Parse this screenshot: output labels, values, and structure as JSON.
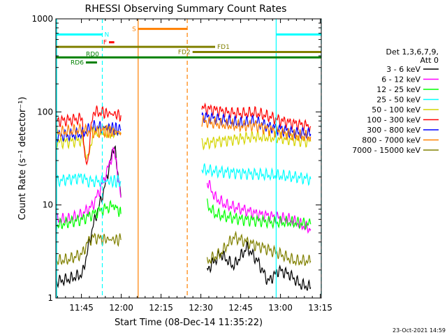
{
  "chart_data": {
    "type": "line",
    "title": "RHESSI Observing Summary Count Rates",
    "xlabel": "Start Time (08-Dec-14 11:35:22)",
    "ylabel": "Count Rate (s⁻¹ detector⁻¹)",
    "y_scale": "log",
    "ylim": [
      1,
      1000
    ],
    "xlim_minutes_from_start": [
      0,
      100
    ],
    "x_ticks": [
      {
        "label": "11:45",
        "t": 9.63
      },
      {
        "label": "12:00",
        "t": 24.63
      },
      {
        "label": "12:15",
        "t": 39.63
      },
      {
        "label": "12:30",
        "t": 54.63
      },
      {
        "label": "12:45",
        "t": 69.63
      },
      {
        "label": "13:00",
        "t": 84.63
      },
      {
        "label": "13:15",
        "t": 99.63
      }
    ],
    "y_ticks": [
      {
        "label": "1",
        "v": 1
      },
      {
        "label": "10",
        "v": 10
      },
      {
        "label": "100",
        "v": 100
      },
      {
        "label": "1000",
        "v": 1000
      }
    ],
    "legend": {
      "position": "right",
      "header": [
        "Det 1,3,6,7,9,",
        "Att 0"
      ],
      "entries": [
        {
          "label": "3 - 6 keV",
          "color": "#000000"
        },
        {
          "label": "6 - 12 keV",
          "color": "#ff00ff"
        },
        {
          "label": "12 - 25 keV",
          "color": "#00ff00"
        },
        {
          "label": "25 - 50 keV",
          "color": "#00ffff"
        },
        {
          "label": "50 - 100 keV",
          "color": "#d4d400"
        },
        {
          "label": "100 - 300 keV",
          "color": "#ff0000"
        },
        {
          "label": "300 - 800 keV",
          "color": "#0000ff"
        },
        {
          "label": "800 - 7000 keV",
          "color": "#ff8000"
        },
        {
          "label": "7000 - 15000 keV",
          "color": "#808000"
        }
      ]
    },
    "series": [
      {
        "name": "3 - 6 keV",
        "color": "#000000",
        "segments": [
          {
            "t": [
              0,
              5,
              10,
              14,
              18,
              22,
              24.5
            ],
            "v": [
              1.5,
              1.6,
              1.8,
              6,
              14,
              45,
              12
            ]
          },
          {
            "t": [
              57,
              62,
              67,
              72,
              76,
              80,
              84,
              88,
              92,
              96
            ],
            "v": [
              2,
              3,
              2.2,
              3.5,
              2.5,
              1.5,
              2,
              1.8,
              1.4,
              1.3
            ]
          }
        ]
      },
      {
        "name": "6 - 12 keV",
        "color": "#ff00ff",
        "segments": [
          {
            "t": [
              0,
              5,
              10,
              14,
              18,
              22,
              24.5
            ],
            "v": [
              7,
              7,
              8,
              10,
              18,
              40,
              12
            ]
          },
          {
            "t": [
              57,
              60,
              64,
              70,
              76,
              82,
              88,
              93,
              96
            ],
            "v": [
              18,
              12,
              10,
              9,
              8,
              7.5,
              7,
              6,
              5.5
            ]
          }
        ]
      },
      {
        "name": "12 - 25 keV",
        "color": "#00ff00",
        "segments": [
          {
            "t": [
              0,
              5,
              10,
              14,
              18,
              22,
              24.5
            ],
            "v": [
              6,
              6.5,
              7,
              8,
              9,
              10,
              8
            ]
          },
          {
            "t": [
              57,
              60,
              64,
              70,
              76,
              82,
              88,
              93,
              96
            ],
            "v": [
              10,
              8,
              7.5,
              7,
              6.8,
              6.5,
              6.5,
              6.3,
              6.2
            ]
          }
        ]
      },
      {
        "name": "25 - 50 keV",
        "color": "#00ffff",
        "segments": [
          {
            "t": [
              0,
              5,
              10,
              12,
              18,
              24.5
            ],
            "v": [
              18,
              19,
              20,
              18,
              18,
              18
            ]
          },
          {
            "t": [
              55,
              60,
              70,
              80,
              90,
              96
            ],
            "v": [
              24,
              23,
              22,
              21,
              20,
              19
            ]
          }
        ]
      },
      {
        "name": "50 - 100 keV",
        "color": "#d4d400",
        "segments": [
          {
            "t": [
              0,
              5,
              10,
              12,
              14,
              18,
              24.5
            ],
            "v": [
              47,
              48,
              50,
              30,
              60,
              62,
              58
            ]
          },
          {
            "t": [
              55,
              60,
              65,
              70,
              75,
              80,
              85,
              90,
              96
            ],
            "v": [
              45,
              48,
              50,
              52,
              54,
              53,
              52,
              50,
              48
            ]
          }
        ]
      },
      {
        "name": "100 - 300 keV",
        "color": "#ff0000",
        "segments": [
          {
            "t": [
              0,
              5,
              10,
              11,
              12,
              14,
              18,
              24.5
            ],
            "v": [
              80,
              82,
              85,
              28,
              30,
              100,
              98,
              92
            ]
          },
          {
            "t": [
              55,
              60,
              65,
              70,
              75,
              80,
              85,
              90,
              96
            ],
            "v": [
              110,
              105,
              98,
              96,
              98,
              90,
              80,
              75,
              70
            ]
          }
        ]
      },
      {
        "name": "300 - 800 keV",
        "color": "#0000ff",
        "segments": [
          {
            "t": [
              0,
              5,
              10,
              14,
              18,
              24.5
            ],
            "v": [
              55,
              56,
              58,
              70,
              68,
              65
            ]
          },
          {
            "t": [
              55,
              60,
              65,
              70,
              75,
              80,
              85,
              90,
              96
            ],
            "v": [
              90,
              85,
              80,
              75,
              80,
              70,
              65,
              60,
              58
            ]
          }
        ]
      },
      {
        "name": "800 - 7000 keV",
        "color": "#ff8000",
        "segments": [
          {
            "t": [
              0,
              5,
              10,
              14,
              18,
              24.5
            ],
            "v": [
              60,
              62,
              64,
              60,
              62,
              60
            ]
          },
          {
            "t": [
              55,
              60,
              65,
              70,
              75,
              80,
              85,
              90,
              96
            ],
            "v": [
              80,
              75,
              72,
              70,
              72,
              65,
              60,
              56,
              54
            ]
          }
        ]
      },
      {
        "name": "7000 - 15000 keV",
        "color": "#808000",
        "segments": [
          {
            "t": [
              0,
              5,
              10,
              12,
              14,
              18,
              24.5
            ],
            "v": [
              2.5,
              2.6,
              3,
              4,
              4.5,
              4.3,
              4.2
            ]
          },
          {
            "t": [
              57,
              62,
              67,
              72,
              78,
              84,
              90,
              96
            ],
            "v": [
              2.5,
              3,
              4.5,
              4,
              3.5,
              3,
              2.5,
              2.5
            ]
          }
        ]
      }
    ],
    "vertical_lines": [
      {
        "t": 0.3,
        "color": "#00ffff",
        "dash": false
      },
      {
        "t": 17.5,
        "color": "#00ffff",
        "dash": true
      },
      {
        "t": 31,
        "color": "#ff8000",
        "dash": false
      },
      {
        "t": 49.5,
        "color": "#ff8000",
        "dash": true
      },
      {
        "t": 83,
        "color": "#00ffff",
        "dash": false
      },
      {
        "t": 100,
        "color": "#00ffff",
        "dash": true
      }
    ],
    "flag_bars": [
      {
        "label": "N",
        "color": "#00ffff",
        "t0": 0,
        "t1": 17.5,
        "v": 680,
        "label_side": "right"
      },
      {
        "label": "",
        "color": "#00ffff",
        "t0": 83,
        "t1": 100,
        "v": 680,
        "label_side": "right"
      },
      {
        "label": "S",
        "color": "#ff8000",
        "t0": 31,
        "t1": 49.5,
        "v": 780,
        "label_side": "left"
      },
      {
        "label": "F",
        "color": "#ff0000",
        "t0": 20,
        "t1": 22,
        "v": 560,
        "label_side": "left"
      },
      {
        "label": "FD1",
        "color": "#808000",
        "t0": 0,
        "t1": 60,
        "v": 500,
        "label_side": "right"
      },
      {
        "label": "FD2",
        "color": "#808000",
        "t0": 51.5,
        "t1": 100,
        "v": 440,
        "label_side": "left"
      },
      {
        "label": "RD0",
        "color": "#008000",
        "t0": 0,
        "t1": 100,
        "v": 385,
        "label_side": "leftabove"
      },
      {
        "label": "RD6",
        "color": "#008000",
        "t0": 11.3,
        "t1": 15.5,
        "v": 340,
        "label_side": "left"
      }
    ]
  },
  "footer_date": "23-Oct-2021 14:59"
}
